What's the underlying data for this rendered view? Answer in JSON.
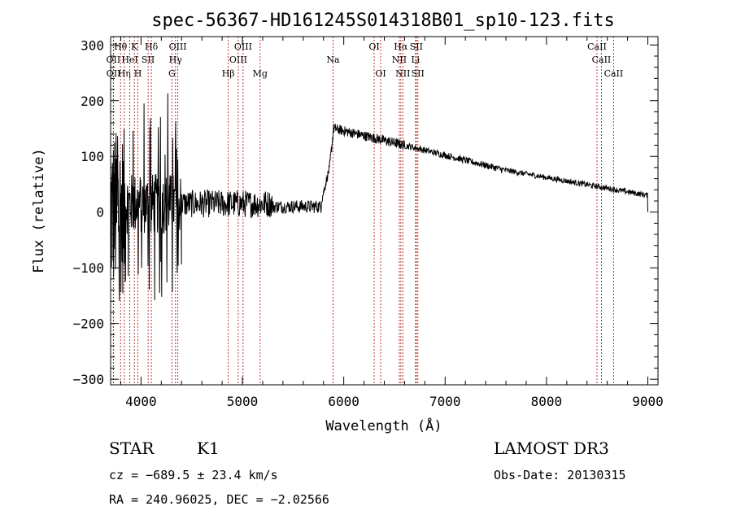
{
  "chart_data": {
    "type": "line",
    "title": "spec-56367-HD161245S014318B01_sp10-123.fits",
    "xlabel": "Wavelength (Å)",
    "ylabel": "Flux (relative)",
    "xlim": [
      3700,
      9100
    ],
    "ylim": [
      -310,
      315
    ],
    "x_ticks": [
      4000,
      5000,
      6000,
      7000,
      8000,
      9000
    ],
    "y_ticks": [
      -300,
      -200,
      -100,
      0,
      100,
      200,
      300
    ],
    "x_minor_step": 200,
    "y_minor_step": 20,
    "series": [
      {
        "name": "flux",
        "segments": [
          {
            "start": 3700,
            "end": 3850,
            "step": 3,
            "base": 0,
            "noise": 150,
            "spike_min": -280,
            "spike_max": 300
          },
          {
            "start": 3850,
            "end": 4400,
            "step": 3,
            "base": 15,
            "noise": 55,
            "spike_min": -160,
            "spike_max": 230
          },
          {
            "start": 4400,
            "end": 5300,
            "step": 4,
            "base": 15,
            "noise": 25
          },
          {
            "start": 5300,
            "end": 5780,
            "step": 4,
            "base": 10,
            "noise": 12
          },
          {
            "start": 5780,
            "end": 5860,
            "step": 3,
            "base_from": 20,
            "base_to": 80,
            "noise": 8
          },
          {
            "start": 5860,
            "end": 5900,
            "step": 3,
            "base_from": 80,
            "base_to": 150,
            "noise": 10
          },
          {
            "start": 5900,
            "end": 6600,
            "step": 3,
            "base_from": 150,
            "base_to": 120,
            "noise": 9
          },
          {
            "start": 6600,
            "end": 7600,
            "step": 4,
            "base_from": 120,
            "base_to": 75,
            "noise": 6
          },
          {
            "start": 7600,
            "end": 9000,
            "step": 4,
            "base_from": 75,
            "base_to": 30,
            "noise": 5
          }
        ],
        "end_drop": [
          9000,
          0
        ]
      }
    ],
    "spectral_lines": [
      {
        "label": "Hθ",
        "wavelength": 3798,
        "row": 0
      },
      {
        "label": "OII",
        "wavelength": 3727,
        "row": 1
      },
      {
        "label": "OII",
        "wavelength": 3729,
        "row": 2
      },
      {
        "label": "Hη",
        "wavelength": 3835,
        "row": 2
      },
      {
        "label": "HeI",
        "wavelength": 3889,
        "row": 1
      },
      {
        "label": "K",
        "wavelength": 3934,
        "row": 0
      },
      {
        "label": "H",
        "wavelength": 3969,
        "row": 2
      },
      {
        "label": "SII",
        "wavelength": 4070,
        "row": 1
      },
      {
        "label": "Hδ",
        "wavelength": 4102,
        "row": 0
      },
      {
        "label": "OIII",
        "wavelength": 4363,
        "row": 0
      },
      {
        "label": "Hγ",
        "wavelength": 4340,
        "row": 1
      },
      {
        "label": "G",
        "wavelength": 4305,
        "row": 2
      },
      {
        "label": "Hβ",
        "wavelength": 4861,
        "row": 2
      },
      {
        "label": "OIII",
        "wavelength": 5007,
        "row": 0
      },
      {
        "label": "OIII",
        "wavelength": 4959,
        "row": 1
      },
      {
        "label": "Mg",
        "wavelength": 5175,
        "row": 2
      },
      {
        "label": "Na",
        "wavelength": 5894,
        "row": 1
      },
      {
        "label": "OI",
        "wavelength": 6300,
        "row": 0
      },
      {
        "label": "OI",
        "wavelength": 6364,
        "row": 2
      },
      {
        "label": "Hα",
        "wavelength": 6563,
        "row": 0
      },
      {
        "label": "NII",
        "wavelength": 6548,
        "row": 1
      },
      {
        "label": "NII",
        "wavelength": 6583,
        "row": 2
      },
      {
        "label": "SII",
        "wavelength": 6716,
        "row": 0
      },
      {
        "label": "Li",
        "wavelength": 6708,
        "row": 1
      },
      {
        "label": "SII",
        "wavelength": 6731,
        "row": 2
      },
      {
        "label": "CaII",
        "wavelength": 8498,
        "row": 0
      },
      {
        "label": "CaII",
        "wavelength": 8542,
        "row": 1
      },
      {
        "label": "CaII",
        "wavelength": 8662,
        "row": 2
      }
    ]
  },
  "info": {
    "object_class": "STAR",
    "subclass": "K1",
    "survey": "LAMOST DR3",
    "redshift_line": "cz = −689.5 ± 23.4 km/s",
    "obs_date": "Obs-Date: 20130315",
    "coords": "RA = 240.96025, DEC =  −2.02566"
  },
  "colors": {
    "marker": "#b22222",
    "text": "#000000"
  }
}
